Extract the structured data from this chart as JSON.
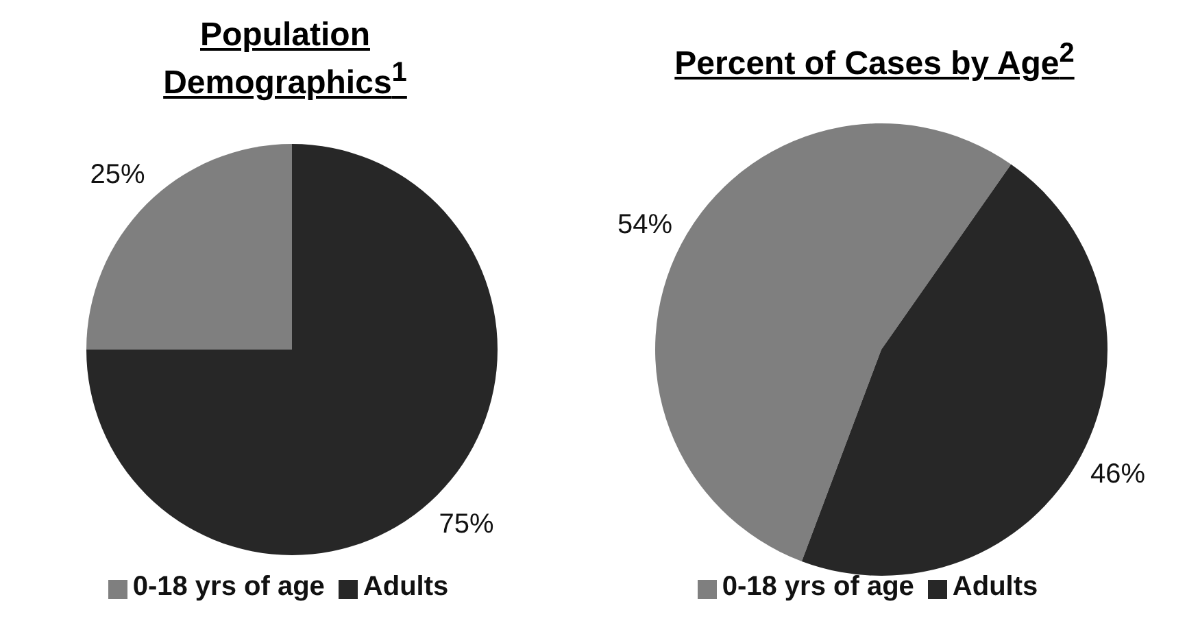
{
  "chart_data": [
    {
      "type": "pie",
      "title": "Population Demographics$^{1}$",
      "categories": [
        "0-18 yrs of age",
        "Adults"
      ],
      "values": [
        25,
        75
      ],
      "value_labels": [
        "25%",
        "75%"
      ],
      "colors": [
        "#7f7f7f",
        "#272727"
      ],
      "legend": "bottom"
    },
    {
      "type": "pie",
      "title": "Percent of Cases by Age$^{2}$",
      "categories": [
        "0-18 yrs of age",
        "Adults"
      ],
      "values": [
        54,
        46
      ],
      "value_labels": [
        "54%",
        "46%"
      ],
      "colors": [
        "#7f7f7f",
        "#272727"
      ],
      "legend": "bottom"
    }
  ]
}
